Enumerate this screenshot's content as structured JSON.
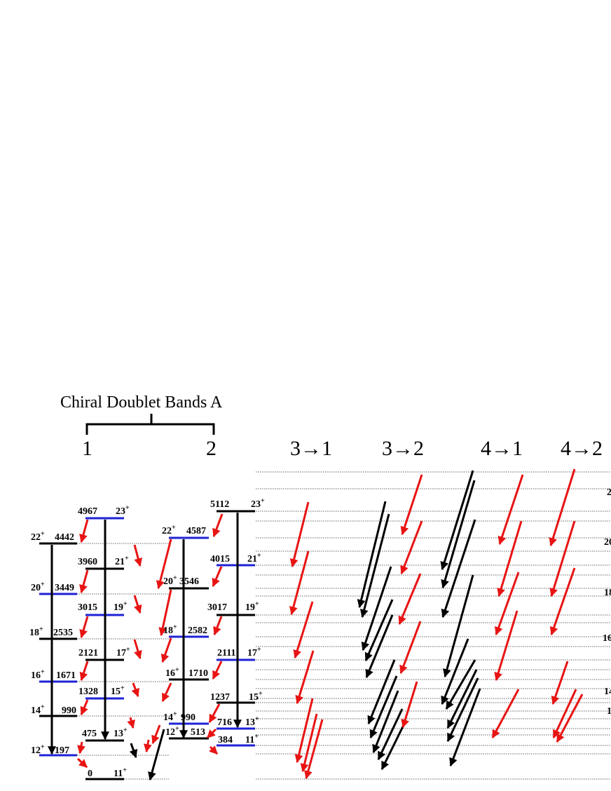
{
  "header": {
    "title": "Chiral Doublet Bands  A",
    "band_labels": [
      "1",
      "2"
    ],
    "transition_labels": [
      "3→1",
      "3→2",
      "4→1",
      "4→2"
    ]
  },
  "colors": {
    "yrast_band": "#000000",
    "partner_band": "#1e22d6",
    "e2_transition": "#000000",
    "m1_transition": "#e81414",
    "guide_line": "#666666"
  },
  "band1": {
    "levels": [
      {
        "energy": "197",
        "spin": "12",
        "parity": "+"
      },
      {
        "energy": "990",
        "spin": "14",
        "parity": "+"
      },
      {
        "energy": "1671",
        "spin": "16",
        "parity": "+"
      },
      {
        "energy": "2535",
        "spin": "18",
        "parity": "+"
      },
      {
        "energy": "3449",
        "spin": "20",
        "parity": "+"
      },
      {
        "energy": "4442",
        "spin": "22",
        "parity": "+"
      },
      {
        "energy": "0",
        "spin": "11",
        "parity": "+"
      },
      {
        "energy": "475",
        "spin": "13",
        "parity": "+"
      },
      {
        "energy": "1328",
        "spin": "15",
        "parity": "+"
      },
      {
        "energy": "2121",
        "spin": "17",
        "parity": "+"
      },
      {
        "energy": "3015",
        "spin": "19",
        "parity": "+"
      },
      {
        "energy": "3960",
        "spin": "21",
        "parity": "+"
      },
      {
        "energy": "4967",
        "spin": "23",
        "parity": "+"
      }
    ]
  },
  "band2": {
    "levels": [
      {
        "energy": "513",
        "spin": "12",
        "parity": "+"
      },
      {
        "energy": "990",
        "spin": "14",
        "parity": "+"
      },
      {
        "energy": "1710",
        "spin": "16",
        "parity": "+"
      },
      {
        "energy": "2582",
        "spin": "18",
        "parity": "+"
      },
      {
        "energy": "3546",
        "spin": "20",
        "parity": "+"
      },
      {
        "energy": "4587",
        "spin": "22",
        "parity": "+"
      },
      {
        "energy": "384",
        "spin": "11",
        "parity": "+"
      },
      {
        "energy": "716",
        "spin": "13",
        "parity": "+"
      },
      {
        "energy": "2111",
        "spin": "17",
        "parity": "+"
      },
      {
        "energy": "1237",
        "spin": "15",
        "parity": "+"
      },
      {
        "energy": "3017",
        "spin": "19",
        "parity": "+"
      },
      {
        "energy": "4015",
        "spin": "21",
        "parity": "+"
      },
      {
        "energy": "5112",
        "spin": "23",
        "parity": "+"
      }
    ]
  },
  "cut_off_right_labels": [
    "2",
    "20",
    "18",
    "16",
    "14",
    "1"
  ]
}
